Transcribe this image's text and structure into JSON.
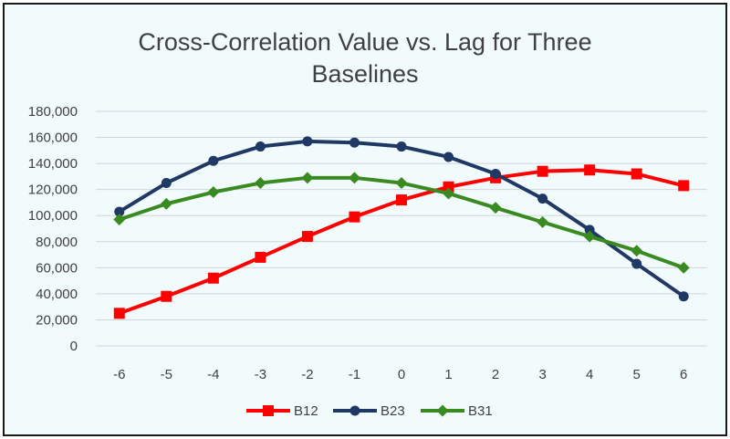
{
  "chart_data": {
    "type": "line",
    "title_lines": [
      "Cross-Correlation Value vs. Lag for Three",
      "Baselines"
    ],
    "xlabel": "",
    "ylabel": "",
    "x": [
      -6,
      -5,
      -4,
      -3,
      -2,
      -1,
      0,
      1,
      2,
      3,
      4,
      5,
      6
    ],
    "x_tick_labels": [
      "-6",
      "-5",
      "-4",
      "-3",
      "-2",
      "-1",
      "0",
      "1",
      "2",
      "3",
      "4",
      "5",
      "6"
    ],
    "ylim": [
      0,
      180000
    ],
    "y_ticks": [
      0,
      20000,
      40000,
      60000,
      80000,
      100000,
      120000,
      140000,
      160000,
      180000
    ],
    "y_tick_labels": [
      "0",
      "20,000",
      "40,000",
      "60,000",
      "80,000",
      "100,000",
      "120,000",
      "140,000",
      "160,000",
      "180,000"
    ],
    "grid": "horizontal",
    "legend_position": "bottom",
    "series": [
      {
        "name": "B12",
        "color": "#ff0000",
        "marker": "square",
        "values": [
          25000,
          38000,
          52000,
          68000,
          84000,
          99000,
          112000,
          122000,
          129000,
          134000,
          135000,
          132000,
          123000
        ]
      },
      {
        "name": "B23",
        "color": "#203864",
        "marker": "circle",
        "values": [
          103000,
          125000,
          142000,
          153000,
          157000,
          156000,
          153000,
          145000,
          132000,
          113000,
          89000,
          63000,
          38000
        ]
      },
      {
        "name": "B31",
        "color": "#3a8a22",
        "marker": "diamond",
        "values": [
          97000,
          109000,
          118000,
          125000,
          129000,
          129000,
          125000,
          117000,
          106000,
          95000,
          84000,
          73000,
          60000
        ]
      }
    ]
  }
}
